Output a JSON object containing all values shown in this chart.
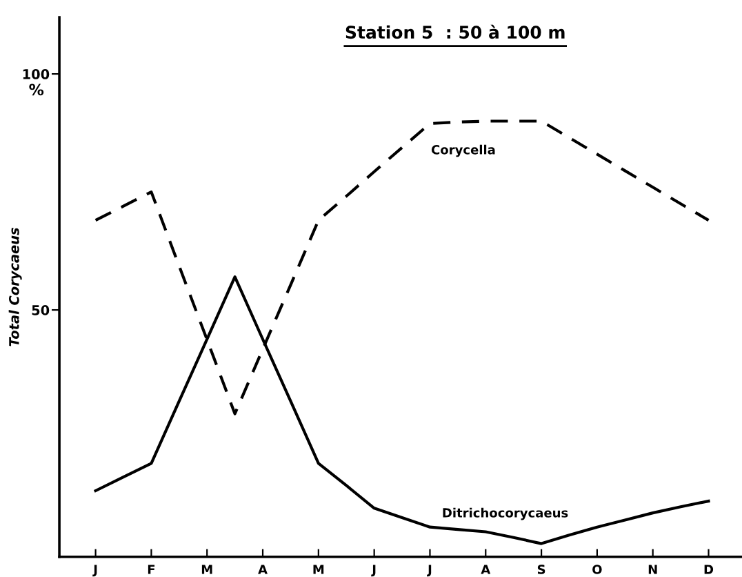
{
  "chart_data": {
    "type": "line",
    "title": "Station 5  : 50 à 100 m",
    "ylabel": "Total Corycaeus",
    "annotations": [
      "%"
    ],
    "categories": [
      "J",
      null,
      "F",
      null,
      "M",
      null,
      "A",
      null,
      "M",
      null,
      "J",
      null,
      "J",
      null,
      "A",
      null,
      "S",
      null,
      "O",
      null,
      "N",
      null,
      "D"
    ],
    "ylim": [
      -2.3,
      112
    ],
    "yticks": [
      50,
      100
    ],
    "grid": false,
    "legend": false,
    "marker": "none",
    "series": [
      {
        "name": "Corycella",
        "color": "#000000",
        "line_style": "dashed",
        "values": [
          69,
          72,
          75,
          59.3,
          43.7,
          28,
          41.7,
          55.3,
          69,
          74.1,
          79.3,
          84.4,
          89.5,
          89.8,
          90,
          90,
          90,
          86.5,
          83,
          79.5,
          76,
          72.5,
          69
        ]
      },
      {
        "name": "Ditrichocorycaeus",
        "color": "#000000",
        "line_style": "solid",
        "values": [
          11.7,
          14.6,
          17.5,
          30.7,
          43.8,
          57,
          43.8,
          30.7,
          17.5,
          12.8,
          8,
          6,
          4,
          3.5,
          3,
          1.8,
          0.5,
          2.3,
          4,
          5.5,
          7,
          8.3,
          9.5
        ]
      }
    ]
  }
}
